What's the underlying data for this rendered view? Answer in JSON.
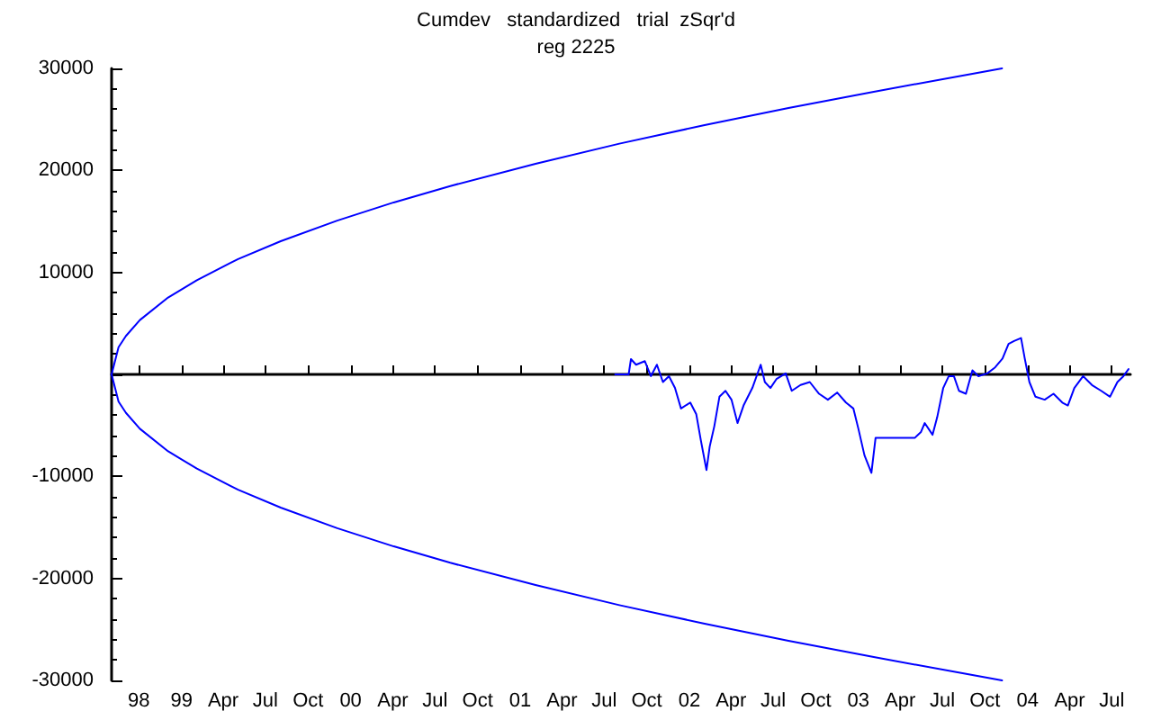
{
  "chart_data": {
    "type": "line",
    "title": "Cumdev   standardized   trial  zSqr'd",
    "subtitle": "reg 2225",
    "xlim": [
      "1998-08-03",
      "2004-08-10"
    ],
    "xticks": [
      {
        "value": "1998-10-01",
        "label": "98"
      },
      {
        "value": "1999-01-01",
        "label": "99"
      },
      {
        "value": "1999-04-01",
        "label": "Apr"
      },
      {
        "value": "1999-07-01",
        "label": "Jul"
      },
      {
        "value": "1999-10-01",
        "label": "Oct"
      },
      {
        "value": "2000-01-01",
        "label": "00"
      },
      {
        "value": "2000-04-01",
        "label": "Apr"
      },
      {
        "value": "2000-07-01",
        "label": "Jul"
      },
      {
        "value": "2000-10-01",
        "label": "Oct"
      },
      {
        "value": "2001-01-01",
        "label": "01"
      },
      {
        "value": "2001-04-01",
        "label": "Apr"
      },
      {
        "value": "2001-07-01",
        "label": "Jul"
      },
      {
        "value": "2001-10-01",
        "label": "Oct"
      },
      {
        "value": "2002-01-01",
        "label": "02"
      },
      {
        "value": "2002-04-01",
        "label": "Apr"
      },
      {
        "value": "2002-07-01",
        "label": "Jul"
      },
      {
        "value": "2002-10-01",
        "label": "Oct"
      },
      {
        "value": "2003-01-01",
        "label": "03"
      },
      {
        "value": "2003-04-01",
        "label": "Apr"
      },
      {
        "value": "2003-07-01",
        "label": "Jul"
      },
      {
        "value": "2003-10-01",
        "label": "Oct"
      },
      {
        "value": "2004-01-01",
        "label": "04"
      },
      {
        "value": "2004-04-01",
        "label": "Apr"
      },
      {
        "value": "2004-07-01",
        "label": "Jul"
      }
    ],
    "ylim": [
      -30000,
      30000
    ],
    "yticks": [
      -30000,
      -20000,
      -10000,
      {
        "value": 0,
        "label": null
      },
      10000,
      20000,
      30000
    ],
    "marker": "none",
    "series": [
      {
        "color": "#0000ff",
        "x": [
          "1998-08-03",
          "1998-08-18",
          "1998-09-03",
          "1998-10-03",
          "1998-12-03",
          "1999-02-03",
          "1999-05-03",
          "1999-08-03",
          "1999-12-03",
          "2000-04-03",
          "2000-08-03",
          "2001-02-03",
          "2001-08-03",
          "2002-02-03",
          "2002-08-03",
          "2003-02-03",
          "2003-08-03",
          "2003-11-07"
        ],
        "values": [
          0,
          2670,
          3770,
          5330,
          7540,
          9240,
          11310,
          13060,
          15080,
          16860,
          18470,
          20650,
          22620,
          24440,
          26120,
          27710,
          29210,
          30000
        ]
      },
      {
        "color": "#0000ff",
        "x": [
          "1998-08-03",
          "1998-08-18",
          "1998-09-03",
          "1998-10-03",
          "1998-12-03",
          "1999-02-03",
          "1999-05-03",
          "1999-08-03",
          "1999-12-03",
          "2000-04-03",
          "2000-08-03",
          "2001-02-03",
          "2001-08-03",
          "2002-02-03",
          "2002-08-03",
          "2003-02-03",
          "2003-08-03",
          "2003-11-07"
        ],
        "values": [
          0,
          -2670,
          -3770,
          -5330,
          -7540,
          -9240,
          -11310,
          -13060,
          -15080,
          -16860,
          -18470,
          -20650,
          -22620,
          -24440,
          -26120,
          -27710,
          -29210,
          -30000
        ]
      },
      {
        "color": "#0000ff",
        "x": [
          "2001-07-25",
          "2001-08-23",
          "2001-08-28",
          "2001-09-08",
          "2001-09-27",
          "2001-10-10",
          "2001-10-23",
          "2001-11-05",
          "2001-11-18",
          "2001-12-01",
          "2001-12-14",
          "2002-01-03",
          "2002-01-16",
          "2002-01-26",
          "2002-02-07",
          "2002-02-14",
          "2002-02-24",
          "2002-03-07",
          "2002-03-20",
          "2002-04-02",
          "2002-04-15",
          "2002-04-28",
          "2002-05-17",
          "2002-06-04",
          "2002-06-13",
          "2002-06-25",
          "2002-07-08",
          "2002-07-28",
          "2002-08-10",
          "2002-08-29",
          "2002-09-18",
          "2002-10-08",
          "2002-10-27",
          "2002-11-16",
          "2002-12-05",
          "2002-12-21",
          "2003-01-01",
          "2003-01-14",
          "2003-01-29",
          "2003-02-07",
          "2003-02-15",
          "2003-05-03",
          "2003-05-16",
          "2003-05-24",
          "2003-06-10",
          "2003-06-20",
          "2003-07-03",
          "2003-07-15",
          "2003-07-26",
          "2003-08-06",
          "2003-08-21",
          "2003-09-04",
          "2003-09-17",
          "2003-10-06",
          "2003-10-23",
          "2003-11-08",
          "2003-11-21",
          "2003-12-03",
          "2003-12-18",
          "2003-12-26",
          "2004-01-05",
          "2004-01-18",
          "2004-02-07",
          "2004-02-26",
          "2004-03-16",
          "2004-03-28",
          "2004-04-11",
          "2004-04-30",
          "2004-05-19",
          "2004-06-08",
          "2004-06-27",
          "2004-07-13",
          "2004-07-26",
          "2004-08-06"
        ],
        "values": [
          0,
          0,
          1500,
          950,
          1300,
          -170,
          950,
          -750,
          -170,
          -1330,
          -3340,
          -2760,
          -3910,
          -6500,
          -9380,
          -7070,
          -5060,
          -2190,
          -1610,
          -2480,
          -4770,
          -3050,
          -1330,
          950,
          -750,
          -1330,
          -460,
          100,
          -1610,
          -1040,
          -750,
          -1900,
          -2480,
          -1780,
          -2760,
          -3340,
          -5350,
          -7930,
          -9650,
          -6210,
          -6210,
          -6210,
          -5640,
          -4770,
          -5920,
          -4200,
          -1330,
          -170,
          -170,
          -1610,
          -1900,
          400,
          -170,
          100,
          690,
          1550,
          2980,
          3270,
          3560,
          1550,
          -750,
          -2190,
          -2480,
          -1900,
          -2760,
          -3050,
          -1330,
          -170,
          -1040,
          -1610,
          -2190,
          -750,
          -170,
          520
        ]
      }
    ]
  }
}
